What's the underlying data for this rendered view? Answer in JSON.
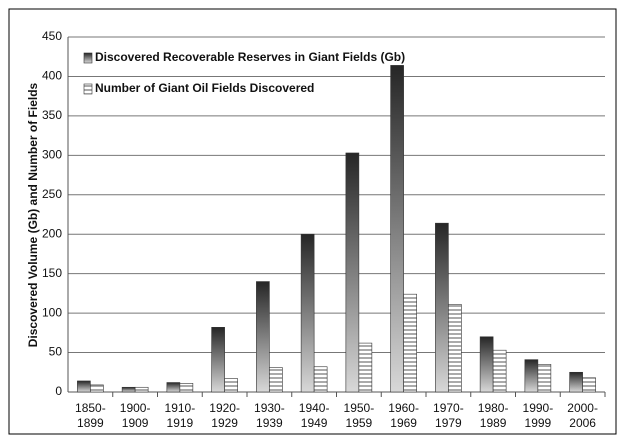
{
  "chart_data": {
    "type": "bar",
    "y_label": "Discovered Volume (Gb) and Number of Fields",
    "categories": [
      "1850-1899",
      "1900-1909",
      "1910-1919",
      "1920-1929",
      "1930-1939",
      "1940-1949",
      "1950-1959",
      "1960-1969",
      "1970-1979",
      "1980-1989",
      "1990-1999",
      "2000-2006"
    ],
    "series": [
      {
        "name": "Discovered Recoverable Reserves in Giant Fields (Gb)",
        "color": "#262626",
        "values": [
          14,
          6,
          12,
          82,
          140,
          200,
          303,
          414,
          214,
          70,
          41,
          25
        ]
      },
      {
        "name": "Number of Giant Oil Fields Discovered",
        "color": "#555555",
        "values": [
          9,
          6,
          11,
          17,
          31,
          32,
          62,
          124,
          111,
          53,
          35,
          18
        ]
      }
    ],
    "ylim": [
      0,
      450
    ],
    "yticks": [
      0,
      50,
      100,
      150,
      200,
      250,
      300,
      350,
      400,
      450
    ],
    "grid": true
  }
}
